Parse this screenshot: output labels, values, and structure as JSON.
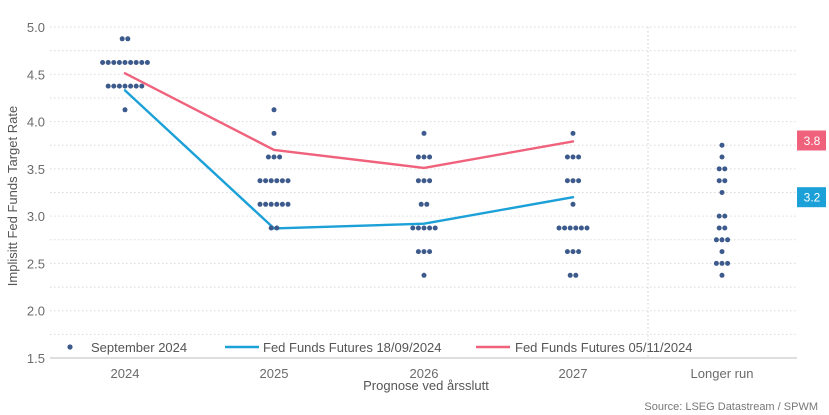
{
  "chart_data": {
    "type": "scatter",
    "title": "",
    "ylabel": "Implisitt Fed Funds Target Rate",
    "xlabel": "Prognose ved årsslutt",
    "ylim": [
      1.5,
      5.0
    ],
    "yticks": [
      "1.5",
      "2.0",
      "2.5",
      "3.0",
      "3.5",
      "4.0",
      "4.5",
      "5.0"
    ],
    "categories": [
      "2024",
      "2025",
      "2026",
      "2027",
      "Longer run"
    ],
    "dots": {
      "name": "September 2024",
      "color": "#3d5a8c",
      "groups": [
        {
          "category": "2024",
          "levels": [
            {
              "v": 4.875,
              "n": 2
            },
            {
              "v": 4.625,
              "n": 9
            },
            {
              "v": 4.375,
              "n": 7
            },
            {
              "v": 4.125,
              "n": 1
            }
          ]
        },
        {
          "category": "2025",
          "levels": [
            {
              "v": 4.125,
              "n": 1
            },
            {
              "v": 3.875,
              "n": 1
            },
            {
              "v": 3.625,
              "n": 3
            },
            {
              "v": 3.375,
              "n": 6
            },
            {
              "v": 3.125,
              "n": 6
            },
            {
              "v": 2.875,
              "n": 2
            }
          ]
        },
        {
          "category": "2026",
          "levels": [
            {
              "v": 3.875,
              "n": 1
            },
            {
              "v": 3.625,
              "n": 3
            },
            {
              "v": 3.375,
              "n": 3
            },
            {
              "v": 3.125,
              "n": 2
            },
            {
              "v": 2.875,
              "n": 5
            },
            {
              "v": 2.625,
              "n": 3
            },
            {
              "v": 2.375,
              "n": 1
            }
          ]
        },
        {
          "category": "2027",
          "levels": [
            {
              "v": 3.875,
              "n": 1
            },
            {
              "v": 3.625,
              "n": 3
            },
            {
              "v": 3.375,
              "n": 3
            },
            {
              "v": 3.125,
              "n": 1
            },
            {
              "v": 2.875,
              "n": 6
            },
            {
              "v": 2.625,
              "n": 3
            },
            {
              "v": 2.375,
              "n": 2
            }
          ]
        },
        {
          "category": "Longer run",
          "levels": [
            {
              "v": 3.75,
              "n": 1
            },
            {
              "v": 3.625,
              "n": 1
            },
            {
              "v": 3.5,
              "n": 2
            },
            {
              "v": 3.375,
              "n": 2
            },
            {
              "v": 3.25,
              "n": 1
            },
            {
              "v": 3.0,
              "n": 2
            },
            {
              "v": 2.875,
              "n": 2
            },
            {
              "v": 2.75,
              "n": 3
            },
            {
              "v": 2.625,
              "n": 1
            },
            {
              "v": 2.5,
              "n": 3
            },
            {
              "v": 2.375,
              "n": 1
            }
          ]
        }
      ]
    },
    "series": [
      {
        "name": "Fed Funds Futures 18/09/2024",
        "color": "#1ba0d8",
        "categories": [
          "2024",
          "2025",
          "2026",
          "2027"
        ],
        "values": [
          4.33,
          2.87,
          2.92,
          3.2
        ]
      },
      {
        "name": "Fed Funds Futures 05/11/2024",
        "color": "#f0627c",
        "categories": [
          "2024",
          "2025",
          "2026",
          "2027"
        ],
        "values": [
          4.51,
          3.7,
          3.51,
          3.79
        ]
      }
    ],
    "badges": [
      {
        "label": "3.8",
        "value": 3.8,
        "color": "#f0627c"
      },
      {
        "label": "3.2",
        "value": 3.2,
        "color": "#1ba0d8"
      }
    ],
    "source": "Source: LSEG Datastream / SPWM"
  }
}
